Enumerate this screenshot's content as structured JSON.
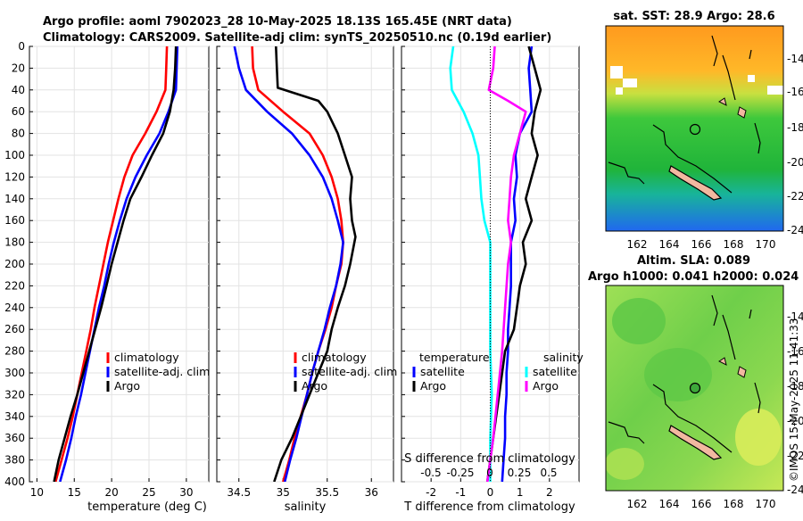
{
  "header": {
    "title_line1": "Argo profile: aoml 7902023_28 10-May-2025 18.13S 165.45E (NRT data)",
    "title_line2": "Climatology: CARS2009. Satellite-adj clim: synTS_20250510.nc (0.19d earlier)"
  },
  "colors": {
    "climatology": "#ff0000",
    "satellite_adj": "#0000ff",
    "argo": "#000000",
    "t_satellite": "#0000ff",
    "s_satellite": "#00ffff",
    "s_argo": "#ff00ff"
  },
  "chart_data": [
    {
      "type": "line",
      "name": "temperature-profile",
      "xlabel": "temperature (deg C)",
      "ylabel": "depth",
      "xlim": [
        9,
        33
      ],
      "ylim": [
        400,
        0
      ],
      "xticks": [
        10,
        15,
        20,
        25,
        30
      ],
      "yticks": [
        0,
        20,
        40,
        60,
        80,
        100,
        120,
        140,
        160,
        180,
        200,
        220,
        240,
        260,
        280,
        300,
        320,
        340,
        360,
        380,
        400
      ],
      "legend": [
        "climatology",
        "satellite-adj. clim",
        "Argo"
      ],
      "legend_position": "lower-right",
      "series": [
        {
          "name": "climatology",
          "color": "#ff0000",
          "points": [
            [
              27.4,
              0
            ],
            [
              27.3,
              20
            ],
            [
              27.2,
              40
            ],
            [
              26.0,
              60
            ],
            [
              24.5,
              80
            ],
            [
              22.8,
              100
            ],
            [
              21.7,
              120
            ],
            [
              20.9,
              140
            ],
            [
              20.2,
              160
            ],
            [
              19.5,
              180
            ],
            [
              18.9,
              200
            ],
            [
              18.3,
              220
            ],
            [
              17.7,
              240
            ],
            [
              17.2,
              260
            ],
            [
              16.6,
              280
            ],
            [
              16.0,
              300
            ],
            [
              15.4,
              320
            ],
            [
              14.8,
              340
            ],
            [
              14.1,
              360
            ],
            [
              13.3,
              380
            ],
            [
              12.5,
              400
            ]
          ]
        },
        {
          "name": "satellite-adj. clim",
          "color": "#0000ff",
          "points": [
            [
              28.8,
              0
            ],
            [
              28.7,
              20
            ],
            [
              28.6,
              40
            ],
            [
              27.6,
              60
            ],
            [
              26.4,
              80
            ],
            [
              24.7,
              100
            ],
            [
              23.2,
              120
            ],
            [
              22.0,
              140
            ],
            [
              21.1,
              160
            ],
            [
              20.3,
              180
            ],
            [
              19.6,
              200
            ],
            [
              19.0,
              220
            ],
            [
              18.3,
              240
            ],
            [
              17.7,
              260
            ],
            [
              17.1,
              280
            ],
            [
              16.5,
              300
            ],
            [
              15.9,
              320
            ],
            [
              15.2,
              340
            ],
            [
              14.6,
              360
            ],
            [
              13.9,
              380
            ],
            [
              13.1,
              400
            ]
          ]
        },
        {
          "name": "Argo",
          "color": "#000000",
          "points": [
            [
              28.6,
              0
            ],
            [
              28.5,
              20
            ],
            [
              28.3,
              40
            ],
            [
              27.8,
              60
            ],
            [
              26.9,
              80
            ],
            [
              25.4,
              100
            ],
            [
              24.0,
              120
            ],
            [
              22.5,
              140
            ],
            [
              21.6,
              160
            ],
            [
              20.8,
              180
            ],
            [
              20.0,
              200
            ],
            [
              19.3,
              220
            ],
            [
              18.6,
              240
            ],
            [
              17.8,
              260
            ],
            [
              17.0,
              280
            ],
            [
              16.2,
              300
            ],
            [
              15.4,
              320
            ],
            [
              14.5,
              340
            ],
            [
              13.7,
              360
            ],
            [
              12.9,
              380
            ],
            [
              12.3,
              400
            ]
          ]
        }
      ]
    },
    {
      "type": "line",
      "name": "salinity-profile",
      "xlabel": "salinity",
      "xlim": [
        34.25,
        36.25
      ],
      "ylim": [
        400,
        0
      ],
      "xticks": [
        34.5,
        35,
        35.5,
        36
      ],
      "xticklabels": [
        "34.5",
        "35",
        "35.5",
        "36"
      ],
      "legend": [
        "climatology",
        "satellite-adj. clim",
        "Argo"
      ],
      "legend_position": "lower-right",
      "series": [
        {
          "name": "climatology",
          "color": "#ff0000",
          "points": [
            [
              34.65,
              0
            ],
            [
              34.66,
              20
            ],
            [
              34.72,
              40
            ],
            [
              35.0,
              60
            ],
            [
              35.3,
              80
            ],
            [
              35.45,
              100
            ],
            [
              35.55,
              120
            ],
            [
              35.62,
              140
            ],
            [
              35.66,
              160
            ],
            [
              35.68,
              180
            ],
            [
              35.66,
              200
            ],
            [
              35.6,
              220
            ],
            [
              35.55,
              240
            ],
            [
              35.48,
              260
            ],
            [
              35.4,
              280
            ],
            [
              35.33,
              300
            ],
            [
              35.27,
              320
            ],
            [
              35.2,
              340
            ],
            [
              35.13,
              360
            ],
            [
              35.07,
              380
            ],
            [
              35.0,
              400
            ]
          ]
        },
        {
          "name": "satellite-adj. clim",
          "color": "#0000ff",
          "points": [
            [
              34.45,
              0
            ],
            [
              34.5,
              20
            ],
            [
              34.58,
              40
            ],
            [
              34.82,
              60
            ],
            [
              35.1,
              80
            ],
            [
              35.3,
              100
            ],
            [
              35.45,
              120
            ],
            [
              35.55,
              140
            ],
            [
              35.62,
              160
            ],
            [
              35.68,
              180
            ],
            [
              35.65,
              200
            ],
            [
              35.6,
              220
            ],
            [
              35.53,
              240
            ],
            [
              35.47,
              260
            ],
            [
              35.4,
              280
            ],
            [
              35.33,
              300
            ],
            [
              35.27,
              320
            ],
            [
              35.21,
              340
            ],
            [
              35.15,
              360
            ],
            [
              35.08,
              380
            ],
            [
              35.02,
              400
            ]
          ]
        },
        {
          "name": "Argo",
          "color": "#000000",
          "points": [
            [
              34.92,
              0
            ],
            [
              34.93,
              20
            ],
            [
              34.94,
              38
            ],
            [
              35.4,
              50
            ],
            [
              35.5,
              60
            ],
            [
              35.62,
              80
            ],
            [
              35.7,
              100
            ],
            [
              35.78,
              120
            ],
            [
              35.76,
              140
            ],
            [
              35.78,
              160
            ],
            [
              35.82,
              175
            ],
            [
              35.76,
              200
            ],
            [
              35.7,
              220
            ],
            [
              35.62,
              240
            ],
            [
              35.55,
              260
            ],
            [
              35.5,
              280
            ],
            [
              35.4,
              300
            ],
            [
              35.3,
              320
            ],
            [
              35.2,
              340
            ],
            [
              35.1,
              360
            ],
            [
              34.98,
              380
            ],
            [
              34.9,
              400
            ]
          ]
        }
      ]
    },
    {
      "type": "line",
      "name": "difference-profile",
      "xlabel": "T difference from climatology",
      "xlim": [
        -3,
        3
      ],
      "ylim": [
        400,
        0
      ],
      "xticks": [
        -2,
        -1,
        0,
        1,
        2
      ],
      "top_axis_label": "S difference from climatology",
      "top_axis_ticks": [
        "-0.5",
        "-0.25",
        "0",
        "0.25",
        "0.5"
      ],
      "legend_temperature_title": "temperature",
      "legend_salinity_title": "salinity",
      "legend_temperature": [
        "satellite",
        "Argo"
      ],
      "legend_salinity": [
        "satellite",
        "Argo"
      ],
      "series": [
        {
          "name": "T satellite",
          "color": "#0000ff",
          "points": [
            [
              1.4,
              0
            ],
            [
              1.3,
              20
            ],
            [
              1.35,
              40
            ],
            [
              1.4,
              60
            ],
            [
              1.0,
              80
            ],
            [
              0.85,
              100
            ],
            [
              0.9,
              120
            ],
            [
              0.8,
              140
            ],
            [
              0.85,
              160
            ],
            [
              0.7,
              180
            ],
            [
              0.7,
              200
            ],
            [
              0.7,
              220
            ],
            [
              0.65,
              240
            ],
            [
              0.6,
              260
            ],
            [
              0.6,
              280
            ],
            [
              0.55,
              300
            ],
            [
              0.55,
              320
            ],
            [
              0.5,
              340
            ],
            [
              0.5,
              360
            ],
            [
              0.45,
              380
            ],
            [
              0.4,
              400
            ]
          ]
        },
        {
          "name": "T Argo",
          "color": "#000000",
          "points": [
            [
              1.3,
              0
            ],
            [
              1.5,
              20
            ],
            [
              1.7,
              40
            ],
            [
              1.5,
              60
            ],
            [
              1.4,
              80
            ],
            [
              1.6,
              100
            ],
            [
              1.4,
              120
            ],
            [
              1.2,
              140
            ],
            [
              1.4,
              160
            ],
            [
              1.1,
              180
            ],
            [
              1.2,
              200
            ],
            [
              1.0,
              220
            ],
            [
              0.9,
              240
            ],
            [
              0.8,
              260
            ],
            [
              0.5,
              280
            ],
            [
              0.4,
              300
            ],
            [
              0.3,
              320
            ],
            [
              0.2,
              340
            ],
            [
              0.1,
              360
            ],
            [
              0.0,
              380
            ],
            [
              -0.1,
              400
            ]
          ]
        },
        {
          "name": "S satellite",
          "color": "#00ffff",
          "points": [
            [
              -1.25,
              0
            ],
            [
              -1.35,
              20
            ],
            [
              -1.3,
              40
            ],
            [
              -0.9,
              60
            ],
            [
              -0.6,
              80
            ],
            [
              -0.4,
              100
            ],
            [
              -0.35,
              120
            ],
            [
              -0.3,
              140
            ],
            [
              -0.2,
              160
            ],
            [
              0.0,
              180
            ],
            [
              0.0,
              200
            ],
            [
              0.0,
              240
            ],
            [
              0.0,
              280
            ],
            [
              0.05,
              320
            ],
            [
              0.0,
              360
            ],
            [
              0.0,
              400
            ]
          ]
        },
        {
          "name": "S Argo",
          "color": "#ff00ff",
          "points": [
            [
              0.15,
              0
            ],
            [
              0.1,
              20
            ],
            [
              -0.05,
              40
            ],
            [
              0.6,
              50
            ],
            [
              1.2,
              60
            ],
            [
              1.0,
              80
            ],
            [
              0.8,
              100
            ],
            [
              0.7,
              120
            ],
            [
              0.65,
              140
            ],
            [
              0.6,
              160
            ],
            [
              0.7,
              180
            ],
            [
              0.6,
              200
            ],
            [
              0.5,
              240
            ],
            [
              0.4,
              280
            ],
            [
              0.25,
              320
            ],
            [
              0.1,
              360
            ],
            [
              -0.1,
              400
            ]
          ]
        }
      ]
    }
  ],
  "maps": {
    "sst": {
      "title": "sat. SST: 28.9 Argo: 28.6",
      "lat_ticks": [
        "-14",
        "-16",
        "-18",
        "-20",
        "-22",
        "-24"
      ],
      "lon_ticks": [
        "162",
        "164",
        "166",
        "168",
        "170"
      ]
    },
    "sla": {
      "title_line1": "Altim. SLA: 0.089",
      "title_line2": "Argo h1000: 0.041 h2000: 0.024",
      "lat_ticks": [
        "-14",
        "-16",
        "-18",
        "-20",
        "-22",
        "-24"
      ],
      "lon_ticks": [
        "162",
        "164",
        "166",
        "168",
        "170"
      ]
    }
  },
  "footer": {
    "credit": "©IMOS 15-May-2025 11:41:33"
  }
}
